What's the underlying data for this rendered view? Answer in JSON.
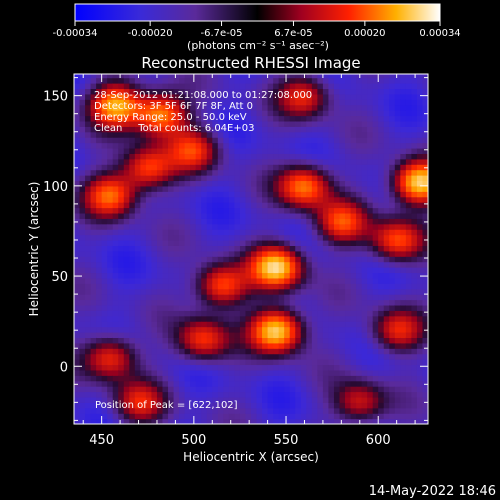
{
  "chart_data": {
    "type": "heatmap",
    "title": "Reconstructed RHESSI Image",
    "xlabel": "Heliocentric X (arcsec)",
    "ylabel": "Heliocentric Y (arcsec)",
    "xlim": [
      435,
      627
    ],
    "ylim": [
      -32,
      162
    ],
    "x_ticks": [
      450,
      500,
      550,
      600
    ],
    "y_ticks": [
      0,
      50,
      100,
      150
    ],
    "colorbar": {
      "ticks": [
        "-0.00034",
        "-0.00020",
        "-6.7e-05",
        "6.7e-05",
        "0.00020",
        "0.00034"
      ],
      "tick_values": [
        -0.00034,
        -0.0002,
        -6.7e-05,
        6.7e-05,
        0.0002,
        0.00034
      ],
      "units": "(photons cm⁻² s⁻¹ asec⁻²)"
    },
    "annotations": [
      "28-Sep-2012 01:21:08.000 to 01:27:08.000",
      "Detectors: 3F 5F 6F 7F 8F, Att 0",
      "Energy Range: 25.0 - 50.0 keV",
      "Clean     Total counts: 6.04E+03"
    ],
    "peak_label": "Position of Peak = [622,102]",
    "peak": [
      622,
      102
    ],
    "bright_sources": [
      {
        "x": 458,
        "y": 145,
        "level": 0.85
      },
      {
        "x": 482,
        "y": 140,
        "level": 0.8
      },
      {
        "x": 455,
        "y": 95,
        "level": 0.7
      },
      {
        "x": 475,
        "y": 110,
        "level": 0.65
      },
      {
        "x": 500,
        "y": 120,
        "level": 0.55
      },
      {
        "x": 560,
        "y": 100,
        "level": 0.75
      },
      {
        "x": 580,
        "y": 80,
        "level": 0.6
      },
      {
        "x": 545,
        "y": 55,
        "level": 0.95
      },
      {
        "x": 515,
        "y": 45,
        "level": 0.7
      },
      {
        "x": 545,
        "y": 20,
        "level": 1.0
      },
      {
        "x": 505,
        "y": 15,
        "level": 0.6
      },
      {
        "x": 622,
        "y": 102,
        "level": 1.0
      },
      {
        "x": 610,
        "y": 70,
        "level": 0.65
      },
      {
        "x": 560,
        "y": 150,
        "level": 0.55
      },
      {
        "x": 455,
        "y": 5,
        "level": 0.6
      },
      {
        "x": 470,
        "y": -20,
        "level": 0.5
      },
      {
        "x": 590,
        "y": -20,
        "level": 0.5
      },
      {
        "x": 610,
        "y": 20,
        "level": 0.55
      }
    ],
    "colors": {
      "low": "#0000ff",
      "mid_low": "#5a2a9a",
      "mid": "#000000",
      "high": "#ff2000",
      "peak": "#ffffff"
    }
  },
  "footer_timestamp": "14-May-2022 18:46"
}
